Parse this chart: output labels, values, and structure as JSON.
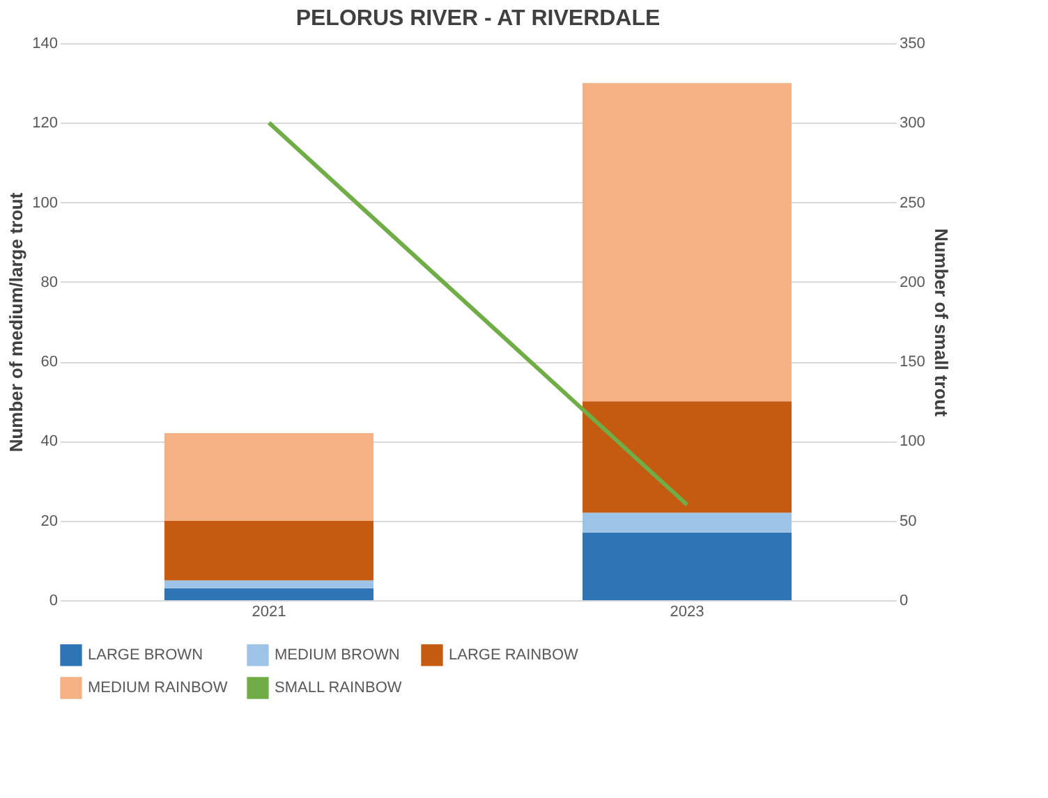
{
  "chart_data": {
    "type": "bar",
    "title": "PELORUS RIVER - AT RIVERDALE",
    "categories": [
      "2021",
      "2023"
    ],
    "stacked": true,
    "ylabel": "Number of medium/large trout",
    "y2label": "Number of small trout",
    "series": [
      {
        "name": "LARGE BROWN",
        "color": "#2e75b6",
        "values": [
          3,
          17
        ]
      },
      {
        "name": "MEDIUM BROWN",
        "color": "#9dc3e6",
        "values": [
          2,
          5
        ]
      },
      {
        "name": "LARGE RAINBOW",
        "color": "#c55a11",
        "values": [
          15,
          28
        ]
      },
      {
        "name": "MEDIUM RAINBOW",
        "color": "#f4b183",
        "values": [
          22,
          80
        ]
      },
      {
        "name": "SMALL RAINBOW",
        "color": "#70ad47",
        "values": [
          300,
          60
        ],
        "type": "line",
        "axis": "y2"
      }
    ],
    "ylim": [
      0,
      140
    ],
    "yticks": [
      0,
      20,
      40,
      60,
      80,
      100,
      120,
      140
    ],
    "y2lim": [
      0,
      350
    ],
    "y2ticks": [
      0,
      50,
      100,
      150,
      200,
      250,
      300,
      350
    ],
    "grid": "y",
    "legend": "bottom"
  }
}
